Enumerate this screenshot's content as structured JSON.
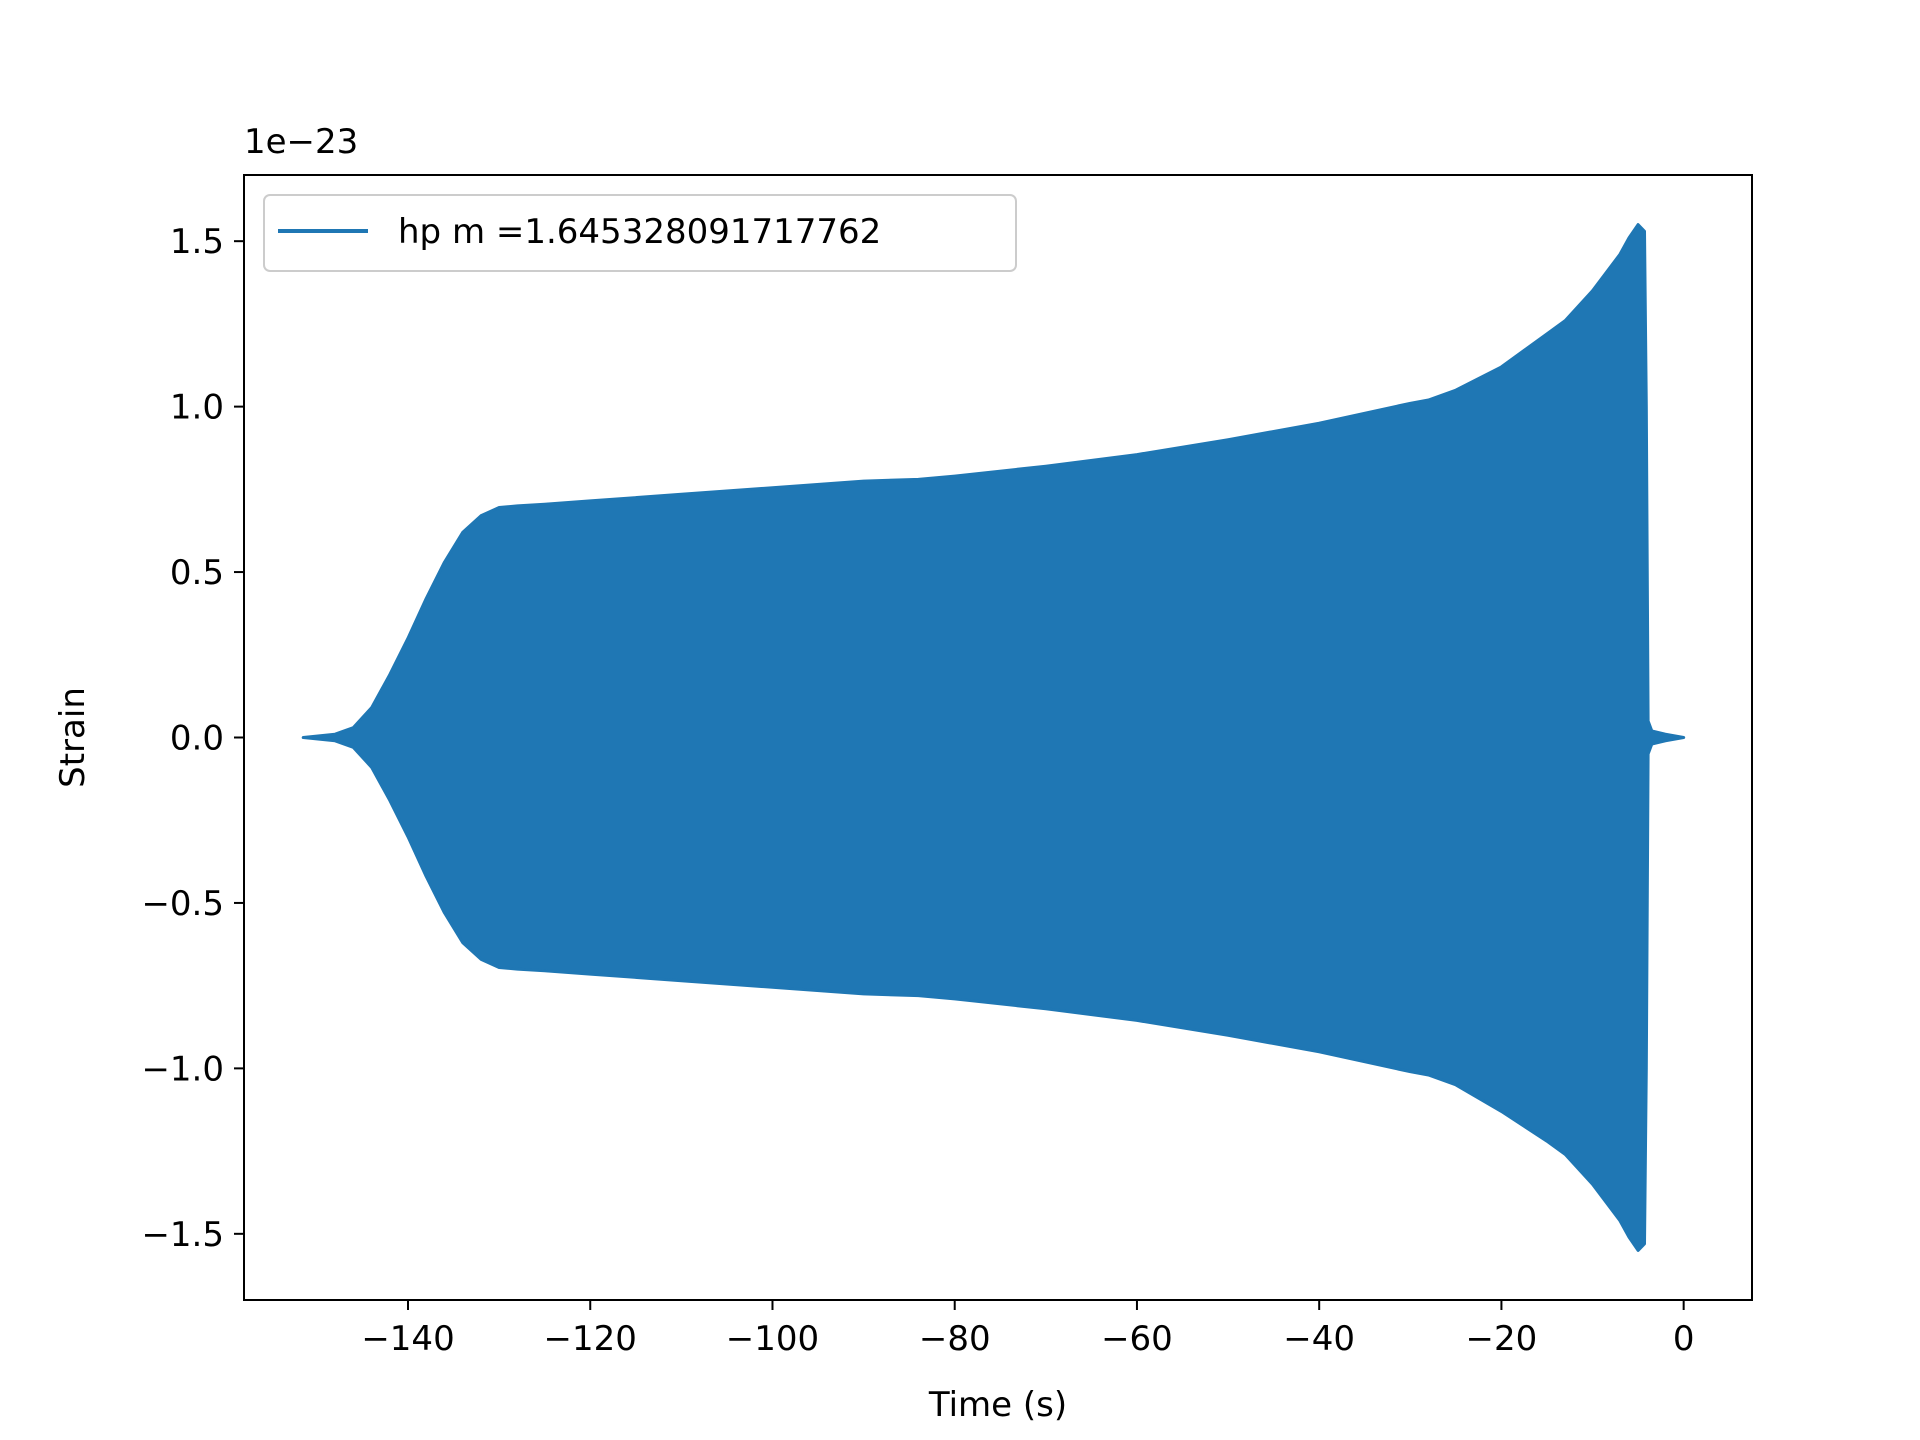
{
  "chart_data": {
    "type": "line",
    "title": "",
    "xlabel": "Time (s)",
    "ylabel": "Strain",
    "y_offset_text": "1e−23",
    "xlim": [
      -158,
      7.5
    ],
    "ylim": [
      -1.7,
      1.7
    ],
    "x_ticks": [
      -140,
      -120,
      -100,
      -80,
      -60,
      -40,
      -20,
      0
    ],
    "x_tick_labels": [
      "−140",
      "−120",
      "−100",
      "−80",
      "−60",
      "−40",
      "−20",
      "0"
    ],
    "y_ticks": [
      -1.5,
      -1.0,
      -0.5,
      0.0,
      0.5,
      1.0,
      1.5
    ],
    "y_tick_labels": [
      "−1.5",
      "−1.0",
      "−0.5",
      "0.0",
      "0.5",
      "1.0",
      "1.5"
    ],
    "grid": false,
    "legend_position": "upper-left",
    "series": [
      {
        "name": "hp m =1.645328091717762",
        "color": "#1f77b4",
        "envelope_time": [
          -151.5,
          -148,
          -146,
          -144,
          -142,
          -140,
          -138,
          -136,
          -134,
          -132,
          -130,
          -128,
          -125,
          -120,
          -110,
          -100,
          -90,
          -84,
          -82,
          -80,
          -70,
          -60,
          -50,
          -40,
          -30,
          -28,
          -25,
          -20,
          -15,
          -13,
          -10,
          -7,
          -6,
          -5,
          -4.3,
          -4.1,
          -3.9,
          -3.5,
          -2,
          0
        ],
        "envelope_upper": [
          0.0,
          0.01,
          0.03,
          0.09,
          0.19,
          0.3,
          0.42,
          0.53,
          0.62,
          0.67,
          0.695,
          0.7,
          0.705,
          0.715,
          0.735,
          0.755,
          0.775,
          0.78,
          0.785,
          0.79,
          0.82,
          0.855,
          0.9,
          0.95,
          1.01,
          1.02,
          1.05,
          1.12,
          1.22,
          1.26,
          1.35,
          1.46,
          1.51,
          1.55,
          1.53,
          1.0,
          0.05,
          0.02,
          0.01,
          0.0
        ],
        "envelope_lower": [
          0.0,
          -0.01,
          -0.03,
          -0.09,
          -0.19,
          -0.3,
          -0.42,
          -0.53,
          -0.62,
          -0.67,
          -0.695,
          -0.7,
          -0.705,
          -0.715,
          -0.735,
          -0.755,
          -0.775,
          -0.78,
          -0.785,
          -0.79,
          -0.82,
          -0.855,
          -0.9,
          -0.95,
          -1.01,
          -1.02,
          -1.05,
          -1.13,
          -1.22,
          -1.26,
          -1.35,
          -1.46,
          -1.51,
          -1.55,
          -1.53,
          -1.0,
          -0.05,
          -0.02,
          -0.01,
          0.0
        ]
      }
    ]
  }
}
